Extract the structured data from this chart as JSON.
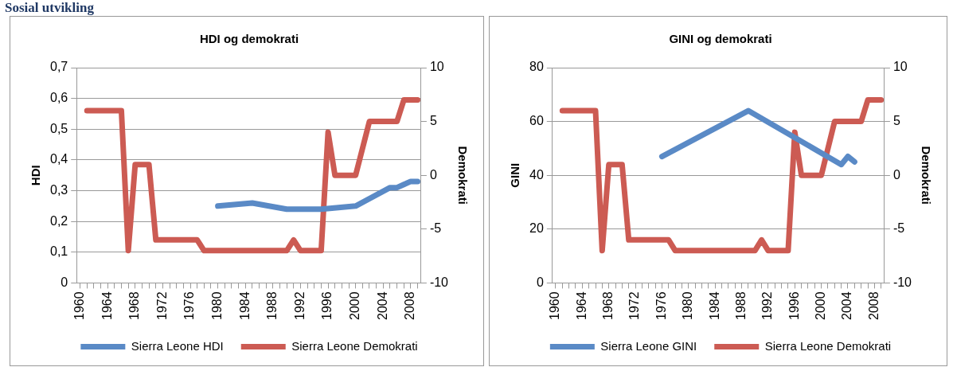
{
  "chart_data": [
    {
      "type": "line",
      "title": "HDI og demokrati",
      "ylabel": "HDI",
      "y2label": "Demokrati",
      "annotations": [
        "Sosial utvikling"
      ],
      "xlim": [
        1959.5,
        2009.5
      ],
      "xticks": [
        1960,
        {
          "value": 1961,
          "label": null
        },
        {
          "value": 1962,
          "label": null
        },
        {
          "value": 1963,
          "label": null
        },
        1964,
        {
          "value": 1965,
          "label": null
        },
        {
          "value": 1966,
          "label": null
        },
        {
          "value": 1967,
          "label": null
        },
        1968,
        {
          "value": 1969,
          "label": null
        },
        {
          "value": 1970,
          "label": null
        },
        {
          "value": 1971,
          "label": null
        },
        1972,
        {
          "value": 1973,
          "label": null
        },
        {
          "value": 1974,
          "label": null
        },
        {
          "value": 1975,
          "label": null
        },
        1976,
        {
          "value": 1977,
          "label": null
        },
        {
          "value": 1978,
          "label": null
        },
        {
          "value": 1979,
          "label": null
        },
        1980,
        {
          "value": 1981,
          "label": null
        },
        {
          "value": 1982,
          "label": null
        },
        {
          "value": 1983,
          "label": null
        },
        1984,
        {
          "value": 1985,
          "label": null
        },
        {
          "value": 1986,
          "label": null
        },
        {
          "value": 1987,
          "label": null
        },
        1988,
        {
          "value": 1989,
          "label": null
        },
        {
          "value": 1990,
          "label": null
        },
        {
          "value": 1991,
          "label": null
        },
        1992,
        {
          "value": 1993,
          "label": null
        },
        {
          "value": 1994,
          "label": null
        },
        {
          "value": 1995,
          "label": null
        },
        1996,
        {
          "value": 1997,
          "label": null
        },
        {
          "value": 1998,
          "label": null
        },
        {
          "value": 1999,
          "label": null
        },
        2000,
        {
          "value": 2001,
          "label": null
        },
        {
          "value": 2002,
          "label": null
        },
        {
          "value": 2003,
          "label": null
        },
        2004,
        {
          "value": 2005,
          "label": null
        },
        {
          "value": 2006,
          "label": null
        },
        {
          "value": 2007,
          "label": null
        },
        2008,
        {
          "value": 2009,
          "label": null
        }
      ],
      "ylim": [
        0,
        0.7
      ],
      "yticks": [
        0,
        {
          "value": 0.1,
          "label": "0,1"
        },
        {
          "value": 0.2,
          "label": "0,2"
        },
        {
          "value": 0.3,
          "label": "0,3"
        },
        {
          "value": 0.4,
          "label": "0,4"
        },
        {
          "value": 0.5,
          "label": "0,5"
        },
        {
          "value": 0.6,
          "label": "0,6"
        },
        {
          "value": 0.7,
          "label": "0,7"
        }
      ],
      "y2lim": [
        -10,
        10
      ],
      "y2ticks": [
        -10,
        -5,
        0,
        5,
        10
      ],
      "grid": "y",
      "legend": "bottom",
      "marker": "none",
      "line_style": "solid",
      "series": [
        {
          "name": "Sierra Leone HDI",
          "color": "#5a8ac6",
          "x": [
            1980,
            1985,
            1990,
            1995,
            2000,
            2005,
            2006,
            2007,
            2008,
            2009
          ],
          "values": [
            0.25,
            0.26,
            0.24,
            0.24,
            0.25,
            0.31,
            0.31,
            0.32,
            0.33,
            0.33
          ]
        },
        {
          "name": "Sierra Leone Demokrati",
          "color": "#cc5b53",
          "axis": "y2",
          "x": [
            1961,
            1962,
            1963,
            1964,
            1965,
            1966,
            1967,
            1968,
            1969,
            1970,
            1971,
            1972,
            1973,
            1974,
            1975,
            1976,
            1977,
            1978,
            1979,
            1980,
            1981,
            1982,
            1983,
            1984,
            1985,
            1986,
            1987,
            1988,
            1989,
            1990,
            1991,
            1992,
            1993,
            1994,
            1995,
            1996,
            1997,
            1998,
            1999,
            2000,
            2001,
            2002,
            2003,
            2004,
            2005,
            2006,
            2007,
            2008,
            2009
          ],
          "values": [
            6,
            6,
            6,
            6,
            6,
            6,
            -7,
            1,
            1,
            1,
            -6,
            -6,
            -6,
            -6,
            -6,
            -6,
            -6,
            -7,
            -7,
            -7,
            -7,
            -7,
            -7,
            -7,
            -7,
            -7,
            -7,
            -7,
            -7,
            -7,
            -6,
            -7,
            -7,
            -7,
            -7,
            4,
            0,
            0,
            0,
            0,
            2.5,
            5,
            5,
            5,
            5,
            5,
            7,
            7,
            7
          ]
        }
      ]
    },
    {
      "type": "line",
      "title": "GINI og demokrati",
      "ylabel": "GINI",
      "y2label": "Demokrati",
      "xlim": [
        1959.5,
        2009.5
      ],
      "xticks": [
        1960,
        {
          "value": 1961,
          "label": null
        },
        {
          "value": 1962,
          "label": null
        },
        {
          "value": 1963,
          "label": null
        },
        1964,
        {
          "value": 1965,
          "label": null
        },
        {
          "value": 1966,
          "label": null
        },
        {
          "value": 1967,
          "label": null
        },
        1968,
        {
          "value": 1969,
          "label": null
        },
        {
          "value": 1970,
          "label": null
        },
        {
          "value": 1971,
          "label": null
        },
        1972,
        {
          "value": 1973,
          "label": null
        },
        {
          "value": 1974,
          "label": null
        },
        {
          "value": 1975,
          "label": null
        },
        1976,
        {
          "value": 1977,
          "label": null
        },
        {
          "value": 1978,
          "label": null
        },
        {
          "value": 1979,
          "label": null
        },
        1980,
        {
          "value": 1981,
          "label": null
        },
        {
          "value": 1982,
          "label": null
        },
        {
          "value": 1983,
          "label": null
        },
        1984,
        {
          "value": 1985,
          "label": null
        },
        {
          "value": 1986,
          "label": null
        },
        {
          "value": 1987,
          "label": null
        },
        1988,
        {
          "value": 1989,
          "label": null
        },
        {
          "value": 1990,
          "label": null
        },
        {
          "value": 1991,
          "label": null
        },
        1992,
        {
          "value": 1993,
          "label": null
        },
        {
          "value": 1994,
          "label": null
        },
        {
          "value": 1995,
          "label": null
        },
        1996,
        {
          "value": 1997,
          "label": null
        },
        {
          "value": 1998,
          "label": null
        },
        {
          "value": 1999,
          "label": null
        },
        2000,
        {
          "value": 2001,
          "label": null
        },
        {
          "value": 2002,
          "label": null
        },
        {
          "value": 2003,
          "label": null
        },
        2004,
        {
          "value": 2005,
          "label": null
        },
        {
          "value": 2006,
          "label": null
        },
        {
          "value": 2007,
          "label": null
        },
        2008,
        {
          "value": 2009,
          "label": null
        }
      ],
      "ylim": [
        0,
        80
      ],
      "yticks": [
        0,
        20,
        40,
        60,
        80
      ],
      "y2lim": [
        -10,
        10
      ],
      "y2ticks": [
        -10,
        -5,
        0,
        5,
        10
      ],
      "grid": "y",
      "legend": "bottom",
      "marker": "none",
      "line_style": "solid",
      "series": [
        {
          "name": "Sierra Leone GINI",
          "color": "#5a8ac6",
          "x": [
            1976,
            1989,
            2003,
            2004,
            2005
          ],
          "values": [
            47,
            64,
            44,
            47,
            45
          ]
        },
        {
          "name": "Sierra Leone Demokrati",
          "color": "#cc5b53",
          "axis": "y2",
          "x": [
            1961,
            1962,
            1963,
            1964,
            1965,
            1966,
            1967,
            1968,
            1969,
            1970,
            1971,
            1972,
            1973,
            1974,
            1975,
            1976,
            1977,
            1978,
            1979,
            1980,
            1981,
            1982,
            1983,
            1984,
            1985,
            1986,
            1987,
            1988,
            1989,
            1990,
            1991,
            1992,
            1993,
            1994,
            1995,
            1996,
            1997,
            1998,
            1999,
            2000,
            2001,
            2002,
            2003,
            2004,
            2005,
            2006,
            2007,
            2008,
            2009
          ],
          "values": [
            6,
            6,
            6,
            6,
            6,
            6,
            -7,
            1,
            1,
            1,
            -6,
            -6,
            -6,
            -6,
            -6,
            -6,
            -6,
            -7,
            -7,
            -7,
            -7,
            -7,
            -7,
            -7,
            -7,
            -7,
            -7,
            -7,
            -7,
            -7,
            -6,
            -7,
            -7,
            -7,
            -7,
            4,
            0,
            0,
            0,
            0,
            2.5,
            5,
            5,
            5,
            5,
            5,
            7,
            7,
            7
          ]
        }
      ]
    }
  ]
}
